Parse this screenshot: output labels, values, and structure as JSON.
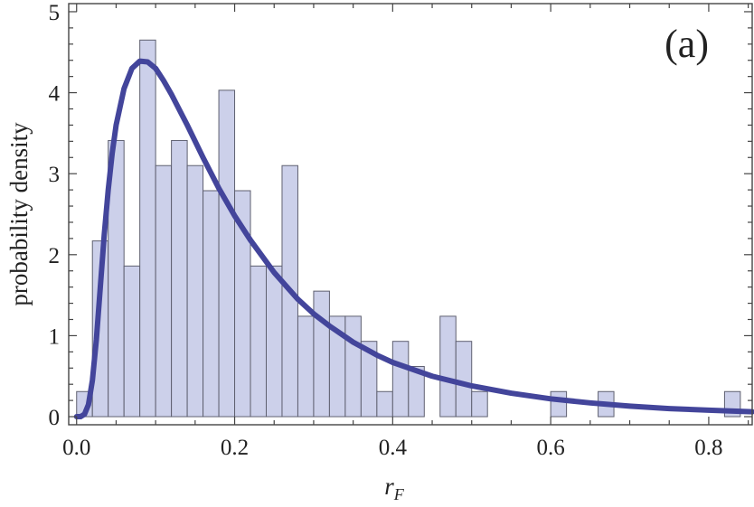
{
  "chart_data": {
    "type": "bar",
    "subtype": "histogram-with-density-curve",
    "panel_label": "(a)",
    "xlabel": "r",
    "xlabel_subscript": "F",
    "ylabel": "probability density",
    "xlim": [
      -0.01,
      0.855
    ],
    "ylim": [
      -0.1,
      5.1
    ],
    "x_ticks": [
      {
        "value": 0.0,
        "label": "0.0"
      },
      {
        "value": 0.2,
        "label": "0.2"
      },
      {
        "value": 0.4,
        "label": "0.4"
      },
      {
        "value": 0.6,
        "label": "0.6"
      },
      {
        "value": 0.8,
        "label": "0.8"
      }
    ],
    "y_ticks": [
      {
        "value": 0,
        "label": "0"
      },
      {
        "value": 1,
        "label": "1"
      },
      {
        "value": 2,
        "label": "2"
      },
      {
        "value": 3,
        "label": "3"
      },
      {
        "value": 4,
        "label": "4"
      },
      {
        "value": 5,
        "label": "5"
      }
    ],
    "bin_width": 0.02,
    "bins": [
      {
        "x0": 0.0,
        "x1": 0.02,
        "value": 0.31
      },
      {
        "x0": 0.02,
        "x1": 0.04,
        "value": 2.17
      },
      {
        "x0": 0.04,
        "x1": 0.06,
        "value": 3.41
      },
      {
        "x0": 0.06,
        "x1": 0.08,
        "value": 1.86
      },
      {
        "x0": 0.08,
        "x1": 0.1,
        "value": 4.65
      },
      {
        "x0": 0.1,
        "x1": 0.12,
        "value": 3.1
      },
      {
        "x0": 0.12,
        "x1": 0.14,
        "value": 3.41
      },
      {
        "x0": 0.14,
        "x1": 0.16,
        "value": 3.1
      },
      {
        "x0": 0.16,
        "x1": 0.18,
        "value": 2.79
      },
      {
        "x0": 0.18,
        "x1": 0.2,
        "value": 4.03
      },
      {
        "x0": 0.2,
        "x1": 0.22,
        "value": 2.79
      },
      {
        "x0": 0.22,
        "x1": 0.24,
        "value": 1.86
      },
      {
        "x0": 0.24,
        "x1": 0.26,
        "value": 1.86
      },
      {
        "x0": 0.26,
        "x1": 0.28,
        "value": 3.1
      },
      {
        "x0": 0.28,
        "x1": 0.3,
        "value": 1.24
      },
      {
        "x0": 0.3,
        "x1": 0.32,
        "value": 1.55
      },
      {
        "x0": 0.32,
        "x1": 0.34,
        "value": 1.24
      },
      {
        "x0": 0.34,
        "x1": 0.36,
        "value": 1.24
      },
      {
        "x0": 0.36,
        "x1": 0.38,
        "value": 0.93
      },
      {
        "x0": 0.38,
        "x1": 0.4,
        "value": 0.31
      },
      {
        "x0": 0.4,
        "x1": 0.42,
        "value": 0.93
      },
      {
        "x0": 0.42,
        "x1": 0.44,
        "value": 0.62
      },
      {
        "x0": 0.46,
        "x1": 0.48,
        "value": 1.24
      },
      {
        "x0": 0.48,
        "x1": 0.5,
        "value": 0.93
      },
      {
        "x0": 0.5,
        "x1": 0.52,
        "value": 0.31
      },
      {
        "x0": 0.6,
        "x1": 0.62,
        "value": 0.31
      },
      {
        "x0": 0.66,
        "x1": 0.68,
        "value": 0.31
      },
      {
        "x0": 0.82,
        "x1": 0.84,
        "value": 0.31
      }
    ],
    "curve": {
      "x": [
        0.0,
        0.005,
        0.01,
        0.015,
        0.02,
        0.025,
        0.03,
        0.035,
        0.04,
        0.045,
        0.05,
        0.06,
        0.07,
        0.08,
        0.09,
        0.1,
        0.11,
        0.12,
        0.14,
        0.16,
        0.18,
        0.2,
        0.22,
        0.25,
        0.28,
        0.3,
        0.32,
        0.35,
        0.38,
        0.4,
        0.45,
        0.5,
        0.55,
        0.6,
        0.65,
        0.7,
        0.75,
        0.8,
        0.855
      ],
      "y": [
        0.0,
        0.0,
        0.03,
        0.15,
        0.45,
        0.95,
        1.6,
        2.25,
        2.8,
        3.25,
        3.6,
        4.05,
        4.3,
        4.39,
        4.38,
        4.3,
        4.15,
        3.98,
        3.6,
        3.2,
        2.82,
        2.48,
        2.18,
        1.78,
        1.45,
        1.27,
        1.12,
        0.92,
        0.76,
        0.67,
        0.5,
        0.38,
        0.29,
        0.22,
        0.17,
        0.13,
        0.1,
        0.08,
        0.06
      ]
    },
    "colors": {
      "bar_fill": "#ccd0ea",
      "bar_stroke": "#5f6070",
      "curve": "#43459b"
    },
    "grid": false,
    "legend": "none"
  }
}
